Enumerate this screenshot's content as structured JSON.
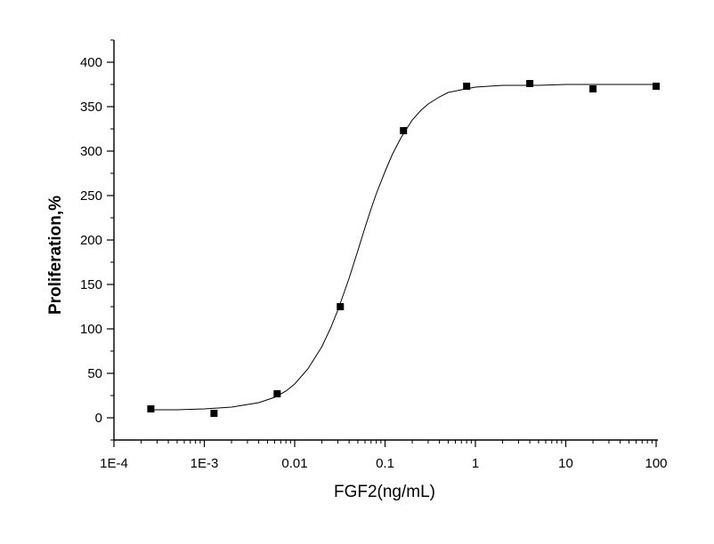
{
  "chart_data": {
    "type": "scatter",
    "xlabel": "FGF2(ng/mL)",
    "ylabel": "Proliferation,%",
    "x_scale": "log",
    "xlim": [
      0.0001,
      100
    ],
    "ylim": [
      -25,
      425
    ],
    "x_ticks": [
      0.0001,
      0.001,
      0.01,
      0.1,
      1,
      10,
      100
    ],
    "x_tick_labels": [
      "1E-4",
      "1E-3",
      "0.01",
      "0.1",
      "1",
      "10",
      "100"
    ],
    "y_ticks": [
      0,
      50,
      100,
      150,
      200,
      250,
      300,
      350,
      400
    ],
    "y_tick_labels": [
      "0",
      "50",
      "100",
      "150",
      "200",
      "250",
      "300",
      "350",
      "400"
    ],
    "grid": false,
    "legend": "none",
    "marker_color": "#000000",
    "line_color": "#000000",
    "series": [
      {
        "type": "scatter",
        "marker": "square",
        "x": [
          0.000256,
          0.00128,
          0.0064,
          0.032,
          0.16,
          0.8,
          4,
          20,
          100
        ],
        "y": [
          10,
          5,
          27,
          125,
          323,
          373,
          376,
          370,
          373
        ]
      },
      {
        "type": "line",
        "fit": "sigmoidal dose-response",
        "x": [
          0.00025,
          0.0005,
          0.001,
          0.002,
          0.004,
          0.006,
          0.008,
          0.01,
          0.014,
          0.02,
          0.025,
          0.03,
          0.035,
          0.04,
          0.05,
          0.06,
          0.07,
          0.08,
          0.1,
          0.12,
          0.15,
          0.2,
          0.25,
          0.3,
          0.4,
          0.5,
          0.7,
          1,
          2,
          5,
          10,
          30,
          100
        ],
        "y": [
          9,
          9,
          10,
          12,
          17,
          23,
          30,
          38,
          55,
          80,
          101,
          121,
          140,
          157,
          188,
          214,
          235,
          252,
          277,
          296,
          315,
          335,
          346,
          353,
          361,
          366,
          369,
          372,
          374,
          374,
          375,
          375,
          375
        ]
      }
    ]
  }
}
